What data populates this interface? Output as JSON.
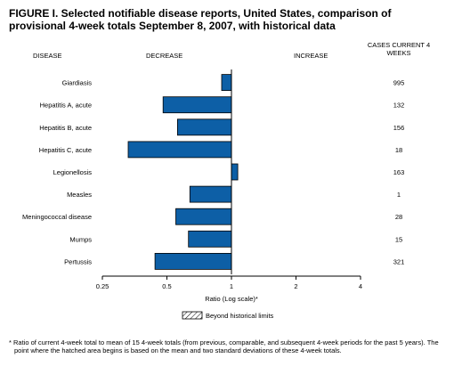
{
  "figure": {
    "title": "FIGURE I. Selected notifiable disease reports, United States, comparison of provisional 4-week totals September 8, 2007, with historical data",
    "col_disease": "DISEASE",
    "col_decrease": "DECREASE",
    "col_increase": "INCREASE",
    "col_cases": "CASES CURRENT 4 WEEKS",
    "legend_label": "Beyond historical limits",
    "footnote": "* Ratio of current 4-week total to mean of 15 4-week totals (from previous, comparable, and subsequent 4-week periods for the past 5 years). The point where the hatched area begins is based on the mean and two standard deviations of these 4-week totals."
  },
  "chart_data": {
    "type": "bar",
    "orientation": "horizontal",
    "x_scale": "log2",
    "xlabel": "Ratio (Log scale)*",
    "xlim": [
      0.25,
      4
    ],
    "x_ticks": [
      0.25,
      0.5,
      1,
      2,
      4
    ],
    "x_tick_labels": [
      "0.25",
      "0.5",
      "1",
      "2",
      "4"
    ],
    "baseline": 1,
    "bar_color": "#0d5fa6",
    "categories": [
      "Giardiasis",
      "Hepatitis A, acute",
      "Hepatitis B, acute",
      "Hepatitis C, acute",
      "Legionellosis",
      "Measles",
      "Meningococcal disease",
      "Mumps",
      "Pertussis"
    ],
    "values": [
      0.9,
      0.48,
      0.56,
      0.33,
      1.07,
      0.64,
      0.55,
      0.63,
      0.44
    ],
    "cases_current_4_weeks": [
      "995",
      "132",
      "156",
      "18",
      "163",
      "1",
      "28",
      "15",
      "321"
    ],
    "legend": [
      {
        "label": "Beyond historical limits",
        "pattern": "hatched"
      }
    ]
  }
}
